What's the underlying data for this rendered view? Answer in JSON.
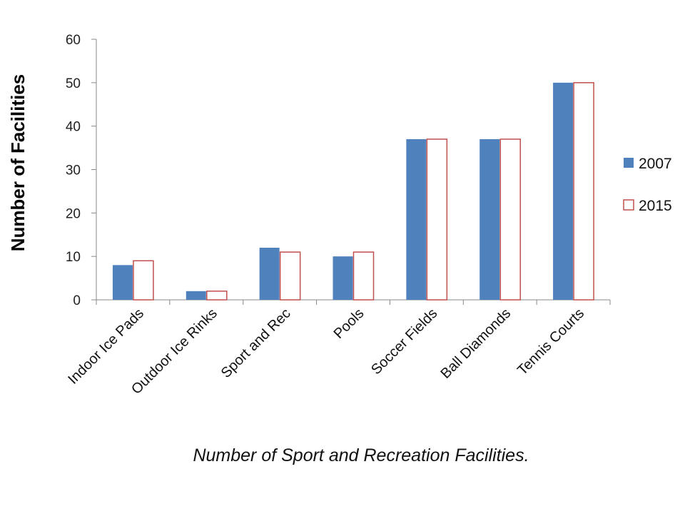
{
  "chart_data": {
    "type": "bar",
    "title": "",
    "caption": "Number of Sport and Recreation Facilities.",
    "xlabel": "",
    "ylabel": "Number of Facilities",
    "ylim": [
      0,
      60
    ],
    "yticks": [
      0,
      10,
      20,
      30,
      40,
      50,
      60
    ],
    "grid": false,
    "legend_position": "right",
    "categories": [
      "Indoor Ice Pads",
      "Outdoor Ice Rinks",
      "Sport and Rec",
      "Pools",
      "Soccer Fields",
      "Ball Diamonds",
      "Tennis Courts"
    ],
    "series": [
      {
        "name": "2007",
        "values": [
          8,
          2,
          12,
          10,
          37,
          37,
          50
        ],
        "fill": "#4f81bd",
        "stroke": "#4f81bd"
      },
      {
        "name": "2015",
        "values": [
          9,
          2,
          11,
          11,
          37,
          37,
          50
        ],
        "fill": "#ffffff",
        "stroke": "#c0504d"
      }
    ]
  }
}
